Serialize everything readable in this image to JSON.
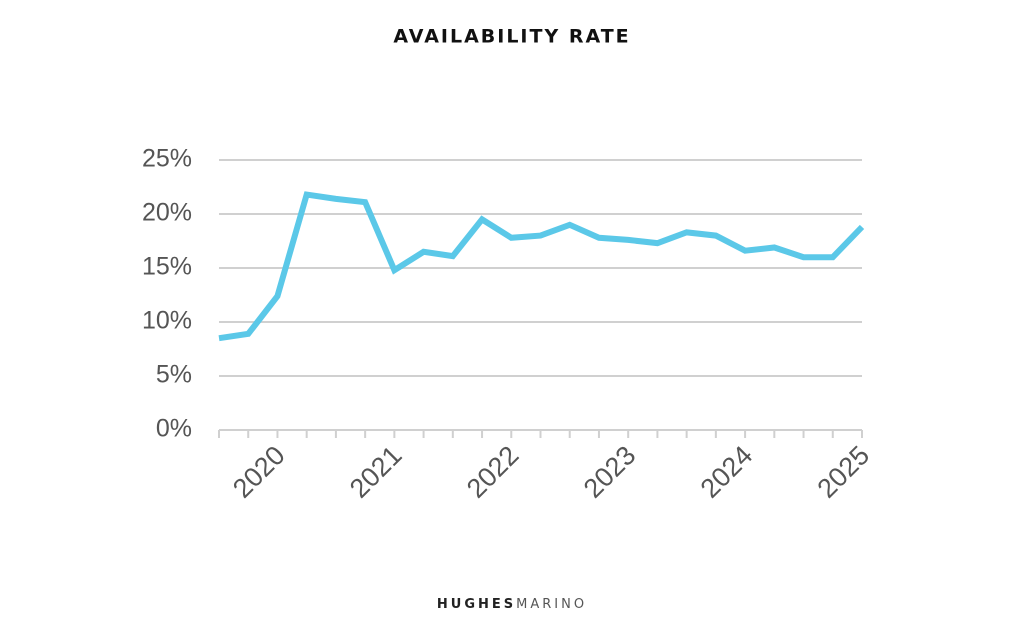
{
  "chart_data": {
    "type": "line",
    "title": "AVAILABILITY RATE",
    "categories": [
      null,
      null,
      "2020",
      null,
      null,
      null,
      "2021",
      null,
      null,
      null,
      "2022",
      null,
      null,
      null,
      "2023",
      null,
      null,
      null,
      "2024",
      null,
      null,
      null,
      "2025"
    ],
    "series": [
      {
        "name": "Availability rate",
        "color": "#5bc8e8",
        "values": [
          8.5,
          8.9,
          12.4,
          21.8,
          21.4,
          21.1,
          14.8,
          16.5,
          16.1,
          19.5,
          17.8,
          18.0,
          19.0,
          17.8,
          17.6,
          17.3,
          18.3,
          18.0,
          16.6,
          16.9,
          16.0,
          16.0,
          18.8
        ]
      }
    ],
    "ylim": [
      0,
      25
    ],
    "yticks": [
      {
        "value": 0,
        "label": "0%"
      },
      {
        "value": 5,
        "label": "5%"
      },
      {
        "value": 10,
        "label": "10%"
      },
      {
        "value": 15,
        "label": "15%"
      },
      {
        "value": 20,
        "label": "20%"
      },
      {
        "value": 25,
        "label": "25%"
      }
    ],
    "grid": true,
    "footer": {
      "brand_bold": "HUGHES",
      "brand_light": "MARINO"
    }
  }
}
